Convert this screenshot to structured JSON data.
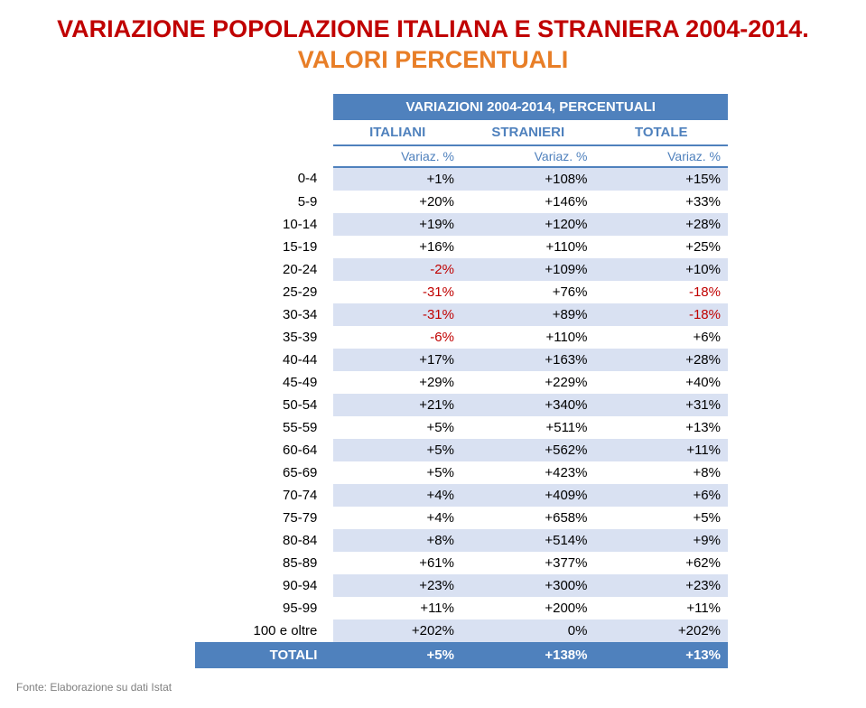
{
  "title": {
    "part_red": "VARIAZIONE POPOLAZIONE ITALIANA E STRANIERA 2004-2014.",
    "part_orange": "VALORI PERCENTUALI"
  },
  "table": {
    "span_header": "VARIAZIONI 2004-2014, PERCENTUALI",
    "col_headers": [
      "ITALIANI",
      "STRANIERI",
      "TOTALE"
    ],
    "sub_headers": [
      "Variaz. %",
      "Variaz. %",
      "Variaz. %"
    ],
    "row_colors": {
      "odd": "#d9e1f2",
      "even": "#ffffff"
    },
    "negative_color": "#c00000",
    "header_bg": "#4f81bd",
    "header_fg": "#ffffff",
    "colhead_fg": "#4f81bd",
    "rows": [
      {
        "label": "0-4",
        "values": [
          "+1%",
          "+108%",
          "+15%"
        ]
      },
      {
        "label": "5-9",
        "values": [
          "+20%",
          "+146%",
          "+33%"
        ]
      },
      {
        "label": "10-14",
        "values": [
          "+19%",
          "+120%",
          "+28%"
        ]
      },
      {
        "label": "15-19",
        "values": [
          "+16%",
          "+110%",
          "+25%"
        ]
      },
      {
        "label": "20-24",
        "values": [
          "-2%",
          "+109%",
          "+10%"
        ]
      },
      {
        "label": "25-29",
        "values": [
          "-31%",
          "+76%",
          "-18%"
        ]
      },
      {
        "label": "30-34",
        "values": [
          "-31%",
          "+89%",
          "-18%"
        ]
      },
      {
        "label": "35-39",
        "values": [
          "-6%",
          "+110%",
          "+6%"
        ]
      },
      {
        "label": "40-44",
        "values": [
          "+17%",
          "+163%",
          "+28%"
        ]
      },
      {
        "label": "45-49",
        "values": [
          "+29%",
          "+229%",
          "+40%"
        ]
      },
      {
        "label": "50-54",
        "values": [
          "+21%",
          "+340%",
          "+31%"
        ]
      },
      {
        "label": "55-59",
        "values": [
          "+5%",
          "+511%",
          "+13%"
        ]
      },
      {
        "label": "60-64",
        "values": [
          "+5%",
          "+562%",
          "+11%"
        ]
      },
      {
        "label": "65-69",
        "values": [
          "+5%",
          "+423%",
          "+8%"
        ]
      },
      {
        "label": "70-74",
        "values": [
          "+4%",
          "+409%",
          "+6%"
        ]
      },
      {
        "label": "75-79",
        "values": [
          "+4%",
          "+658%",
          "+5%"
        ]
      },
      {
        "label": "80-84",
        "values": [
          "+8%",
          "+514%",
          "+9%"
        ]
      },
      {
        "label": "85-89",
        "values": [
          "+61%",
          "+377%",
          "+62%"
        ]
      },
      {
        "label": "90-94",
        "values": [
          "+23%",
          "+300%",
          "+23%"
        ]
      },
      {
        "label": "95-99",
        "values": [
          "+11%",
          "+200%",
          "+11%"
        ]
      },
      {
        "label": "100 e oltre",
        "values": [
          "+202%",
          "0%",
          "+202%"
        ]
      }
    ],
    "total": {
      "label": "TOTALI",
      "values": [
        "+5%",
        "+138%",
        "+13%"
      ]
    }
  },
  "source": "Fonte: Elaborazione su dati Istat"
}
